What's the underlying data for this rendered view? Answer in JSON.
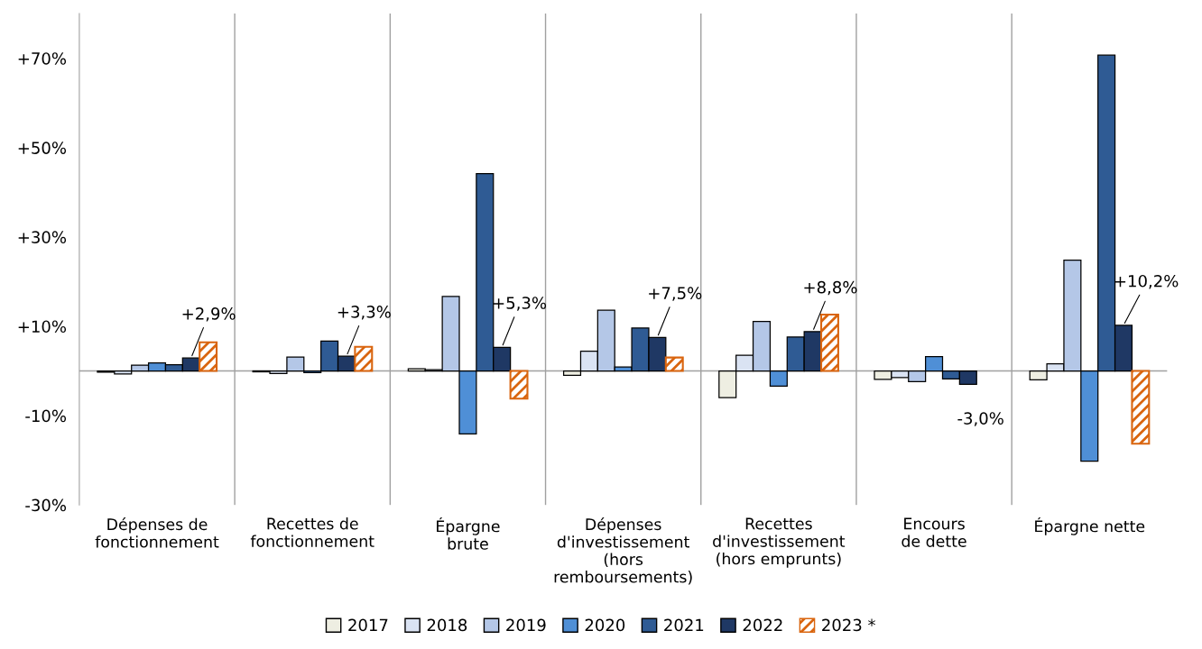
{
  "chart_data": {
    "type": "bar",
    "categories": [
      "Dépenses de\nfonctionnement",
      "Recettes de\nfonctionnement",
      "Épargne\nbrute",
      "Dépenses\nd'investissement\n(hors\nremboursements)",
      "Recettes\nd'investissement\n(hors emprunts)",
      "Encours\nde dette",
      "Épargne nette"
    ],
    "series": [
      {
        "name": "2017",
        "color": "#eeeee2",
        "values": [
          -0.3,
          -0.2,
          0.5,
          -1.0,
          -6.0,
          -1.9,
          -2.0
        ]
      },
      {
        "name": "2018",
        "color": "#dae3f3",
        "values": [
          -0.7,
          -0.6,
          0.3,
          4.4,
          3.5,
          -1.5,
          1.6
        ]
      },
      {
        "name": "2019",
        "color": "#b4c7e7",
        "values": [
          1.3,
          3.1,
          16.7,
          13.6,
          11.1,
          -2.4,
          24.8
        ]
      },
      {
        "name": "2020",
        "color": "#4f8fd6",
        "values": [
          1.8,
          -0.4,
          -14.1,
          0.9,
          -3.4,
          3.2,
          -20.2
        ]
      },
      {
        "name": "2021",
        "color": "#2f5b94",
        "values": [
          1.4,
          6.7,
          44.2,
          9.6,
          7.6,
          -1.8,
          70.7
        ]
      },
      {
        "name": "2022",
        "color": "#1f3864",
        "values": [
          2.9,
          3.3,
          5.3,
          7.5,
          8.8,
          -3.0,
          10.2
        ],
        "value_labels": [
          "+2,9%",
          "+3,3%",
          "+5,3%",
          "+7,5%",
          "+8,8%",
          "-3,0%",
          "+10,2%"
        ]
      },
      {
        "name": "2023 *",
        "color": "#d9650f",
        "values": [
          6.4,
          5.4,
          -6.2,
          3.0,
          12.6,
          null,
          -16.3
        ]
      }
    ],
    "ylim": [
      -30,
      80
    ],
    "yticks": [
      {
        "value": -30,
        "label": "-30%"
      },
      {
        "value": -10,
        "label": "-10%"
      },
      {
        "value": 10,
        "label": "+10%"
      },
      {
        "value": 30,
        "label": "+30%"
      },
      {
        "value": 50,
        "label": "+50%"
      },
      {
        "value": 70,
        "label": "+70%"
      }
    ],
    "grid": "x",
    "legend": "bottom"
  }
}
